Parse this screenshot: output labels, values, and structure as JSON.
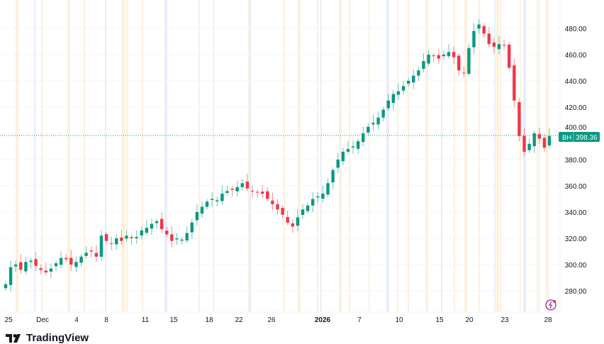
{
  "chart_data": {
    "type": "candlestick",
    "symbol_badge": "BH",
    "last_price": "398.36",
    "last_price_value": 398.36,
    "ylim": [
      260,
      490
    ],
    "y_ticks": [
      "480.00",
      "460.00",
      "440.00",
      "420.00",
      "400.00",
      "380.00",
      "360.00",
      "340.00",
      "320.00",
      "300.00",
      "280.00"
    ],
    "y_tick_values": [
      480,
      460,
      440,
      420,
      400,
      380,
      360,
      340,
      320,
      300,
      280
    ],
    "x_ticks": [
      "25",
      "Dec",
      "4",
      "8",
      "11",
      "15",
      "18",
      "22",
      "26",
      "2026",
      "7",
      "10",
      "15",
      "20",
      "23",
      "28"
    ],
    "closes": [
      285,
      298,
      300,
      296,
      302,
      303,
      299,
      296,
      294,
      297,
      301,
      305,
      304,
      300,
      302,
      306,
      309,
      310,
      306,
      322,
      318,
      316,
      320,
      318,
      322,
      320,
      321,
      326,
      328,
      331,
      333,
      327,
      323,
      318,
      320,
      319,
      324,
      332,
      340,
      344,
      348,
      350,
      349,
      354,
      356,
      357,
      359,
      362,
      358,
      356,
      355,
      354,
      350,
      346,
      342,
      338,
      332,
      329,
      336,
      342,
      345,
      350,
      352,
      354,
      362,
      372,
      380,
      386,
      388,
      390,
      394,
      400,
      405,
      408,
      412,
      418,
      425,
      430,
      432,
      436,
      440,
      444,
      448,
      455,
      460,
      459,
      457,
      460,
      462,
      458,
      448,
      446,
      465,
      478,
      483,
      476,
      468,
      466,
      468,
      467,
      450,
      425,
      398,
      386,
      392,
      400,
      396,
      389,
      398
    ],
    "up_color": "#089981",
    "down_color": "#f23645"
  },
  "branding": {
    "logo_text": "TradingView"
  }
}
